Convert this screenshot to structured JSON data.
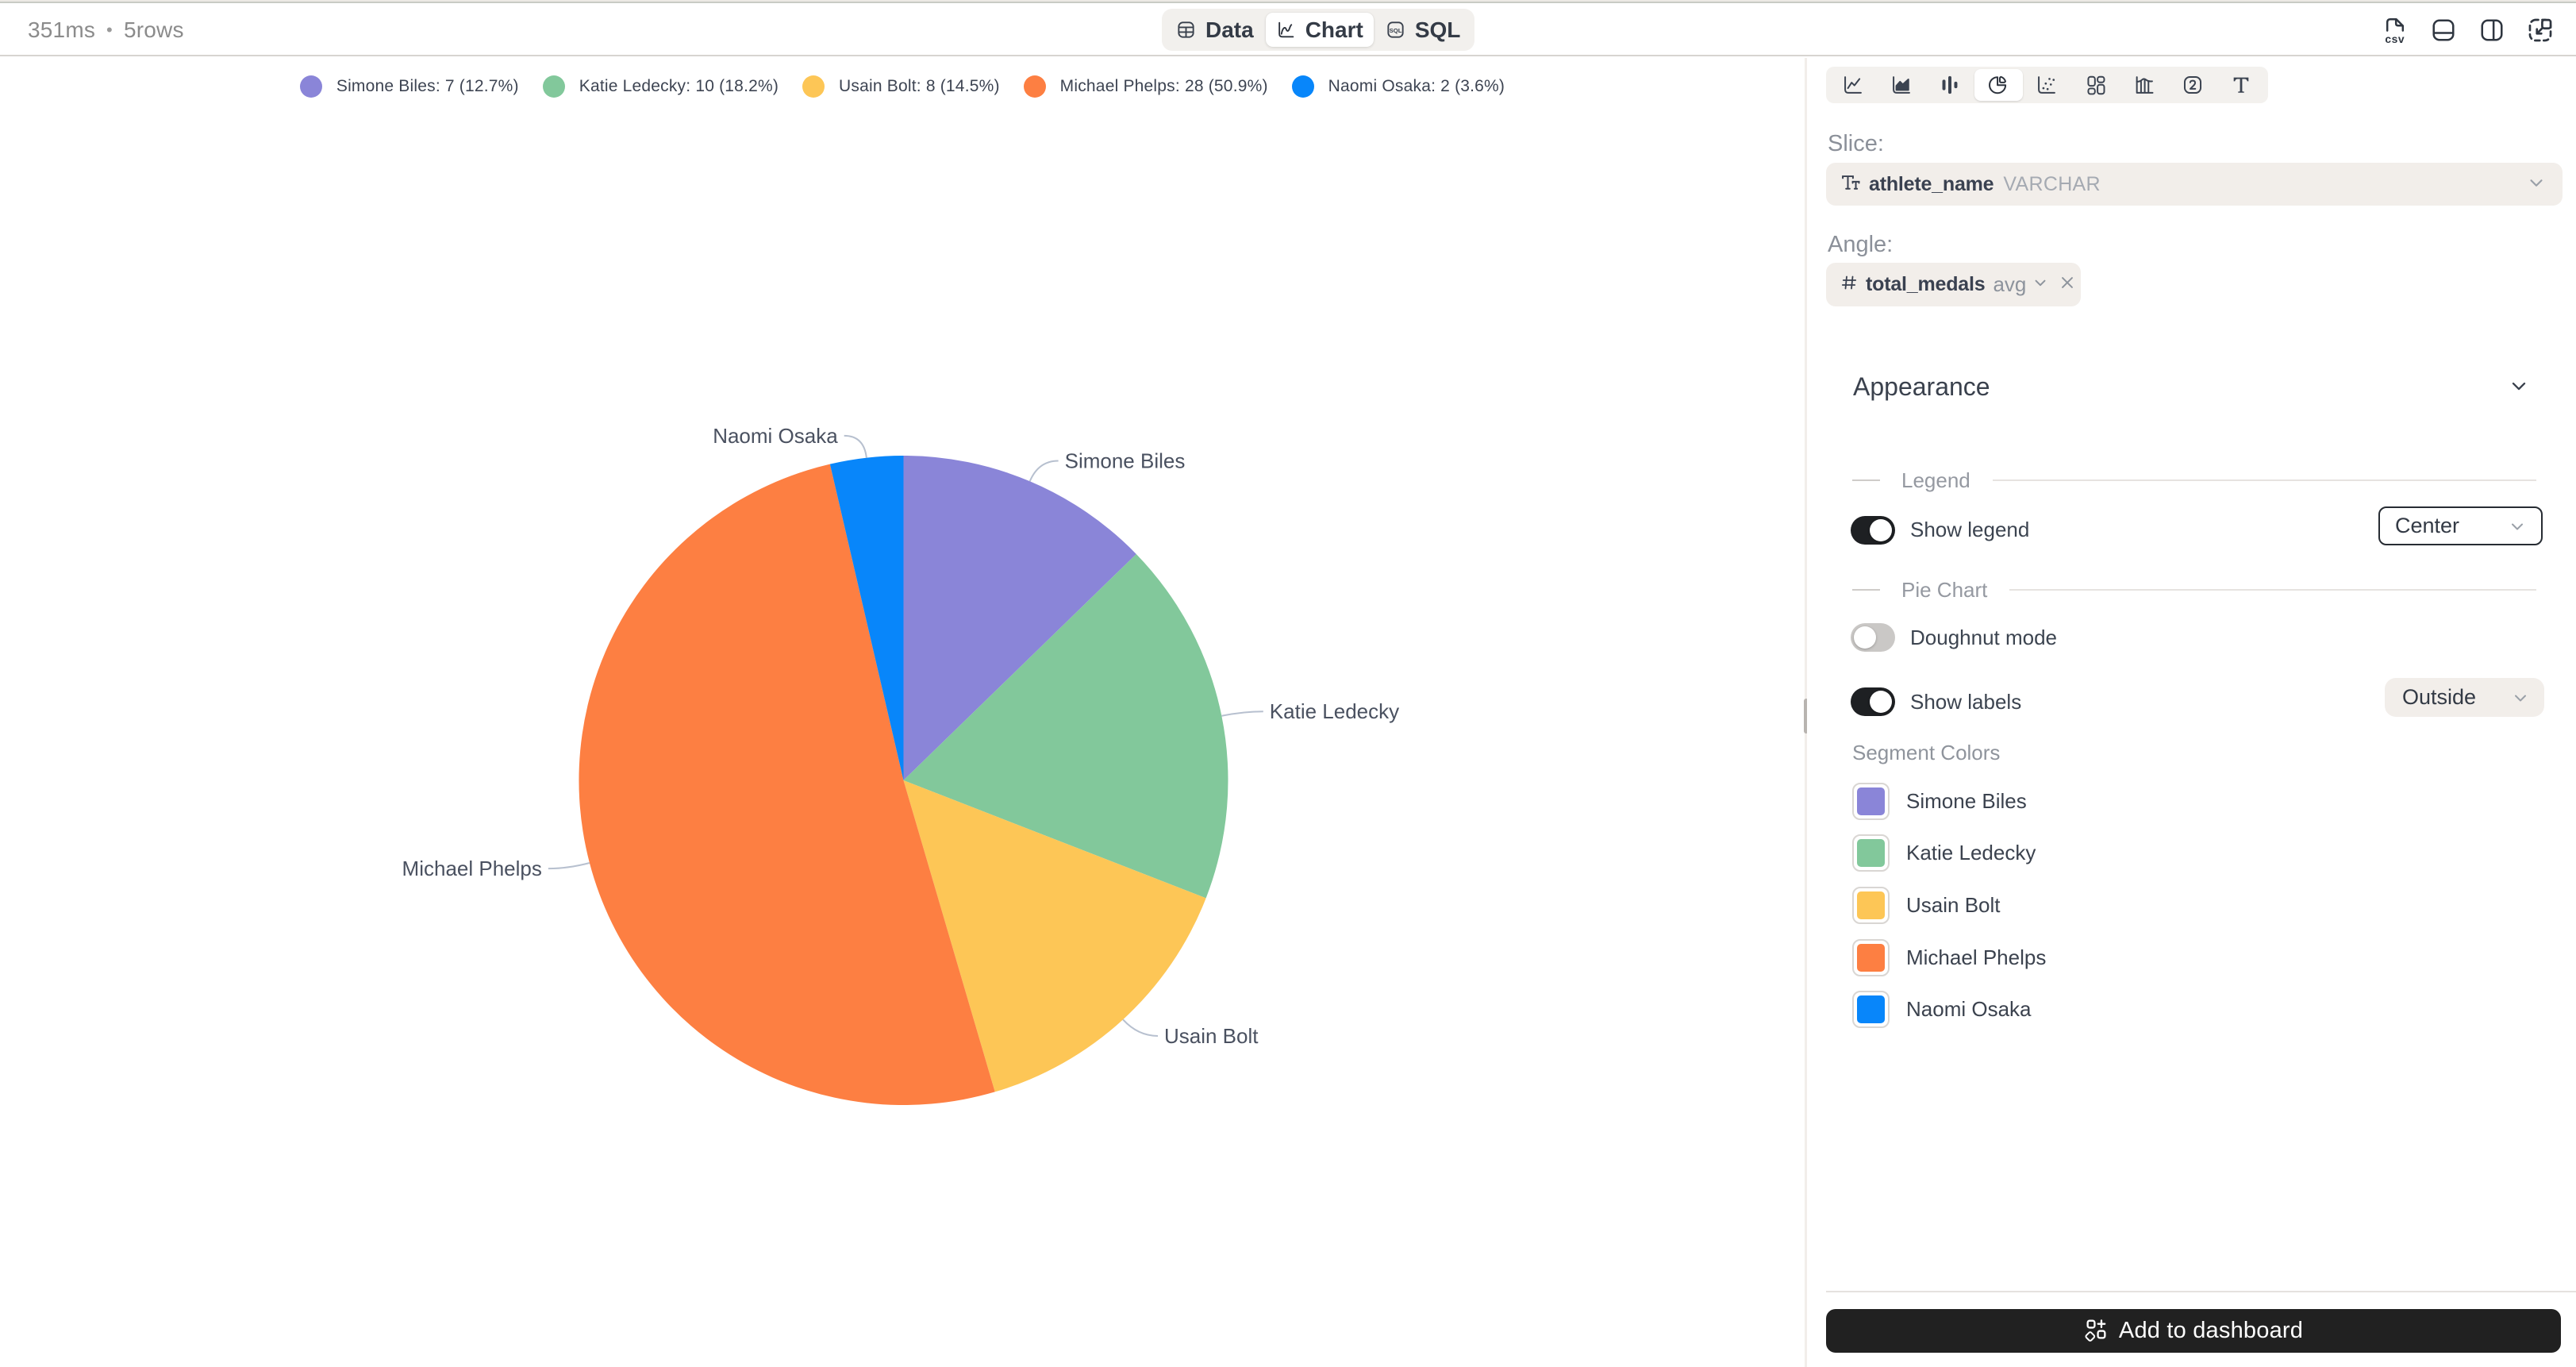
{
  "header": {
    "query_duration": "351ms",
    "separator": "•",
    "row_count": "5rows",
    "tabs": [
      {
        "label": "Data",
        "icon": "table-icon",
        "active": false
      },
      {
        "label": "Chart",
        "icon": "line-chart-icon",
        "active": true
      },
      {
        "label": "SQL",
        "icon": "sql-icon",
        "active": false
      }
    ],
    "actions": [
      {
        "name": "export-csv",
        "icon": "file-csv-icon"
      },
      {
        "name": "split-horizontal",
        "icon": "split-horizontal-icon"
      },
      {
        "name": "split-vertical",
        "icon": "split-vertical-icon"
      },
      {
        "name": "shrink-view",
        "icon": "scale-down-icon"
      }
    ]
  },
  "chart_data": {
    "type": "pie",
    "title": "",
    "legend_position": "top-center",
    "labels_position": "outside",
    "doughnut": false,
    "slices": [
      {
        "label": "Simone Biles",
        "value": 7,
        "percent": 12.7,
        "color": "#8a85d8"
      },
      {
        "label": "Katie Ledecky",
        "value": 10,
        "percent": 18.2,
        "color": "#82c89b"
      },
      {
        "label": "Usain Bolt",
        "value": 8,
        "percent": 14.5,
        "color": "#fdc656"
      },
      {
        "label": "Michael Phelps",
        "value": 28,
        "percent": 50.9,
        "color": "#fd7f42"
      },
      {
        "label": "Naomi Osaka",
        "value": 2,
        "percent": 3.6,
        "color": "#0886fa"
      }
    ],
    "legend_items": [
      {
        "text": "Simone Biles: 7 (12.7%)",
        "color": "#8a85d8"
      },
      {
        "text": "Katie Ledecky: 10 (18.2%)",
        "color": "#82c89b"
      },
      {
        "text": "Usain Bolt: 8 (14.5%)",
        "color": "#fdc656"
      },
      {
        "text": "Michael Phelps: 28 (50.9%)",
        "color": "#fd7f42"
      },
      {
        "text": "Naomi Osaka: 2 (3.6%)",
        "color": "#0886fa"
      }
    ]
  },
  "sidebar": {
    "chart_types": [
      {
        "name": "line",
        "active": false
      },
      {
        "name": "area",
        "active": false
      },
      {
        "name": "column",
        "active": false
      },
      {
        "name": "pie",
        "active": true
      },
      {
        "name": "scatter",
        "active": false
      },
      {
        "name": "dashboard",
        "active": false
      },
      {
        "name": "histogram",
        "active": false
      },
      {
        "name": "number",
        "active": false
      },
      {
        "name": "text",
        "active": false
      }
    ],
    "slice": {
      "label": "Slice:",
      "field": "athlete_name",
      "type": "VARCHAR"
    },
    "angle": {
      "label": "Angle:",
      "field": "total_medals",
      "aggregation": "avg"
    },
    "appearance": {
      "title": "Appearance",
      "legend_section": {
        "title": "Legend",
        "show_legend": {
          "label": "Show legend",
          "on": true
        },
        "position": "Center"
      },
      "pie_section": {
        "title": "Pie Chart",
        "doughnut_mode": {
          "label": "Doughnut mode",
          "on": false
        },
        "show_labels": {
          "label": "Show labels",
          "on": true
        },
        "labels_position": "Outside"
      },
      "segment_colors": {
        "title": "Segment Colors"
      }
    },
    "footer": {
      "button_label": "Add to dashboard"
    }
  }
}
